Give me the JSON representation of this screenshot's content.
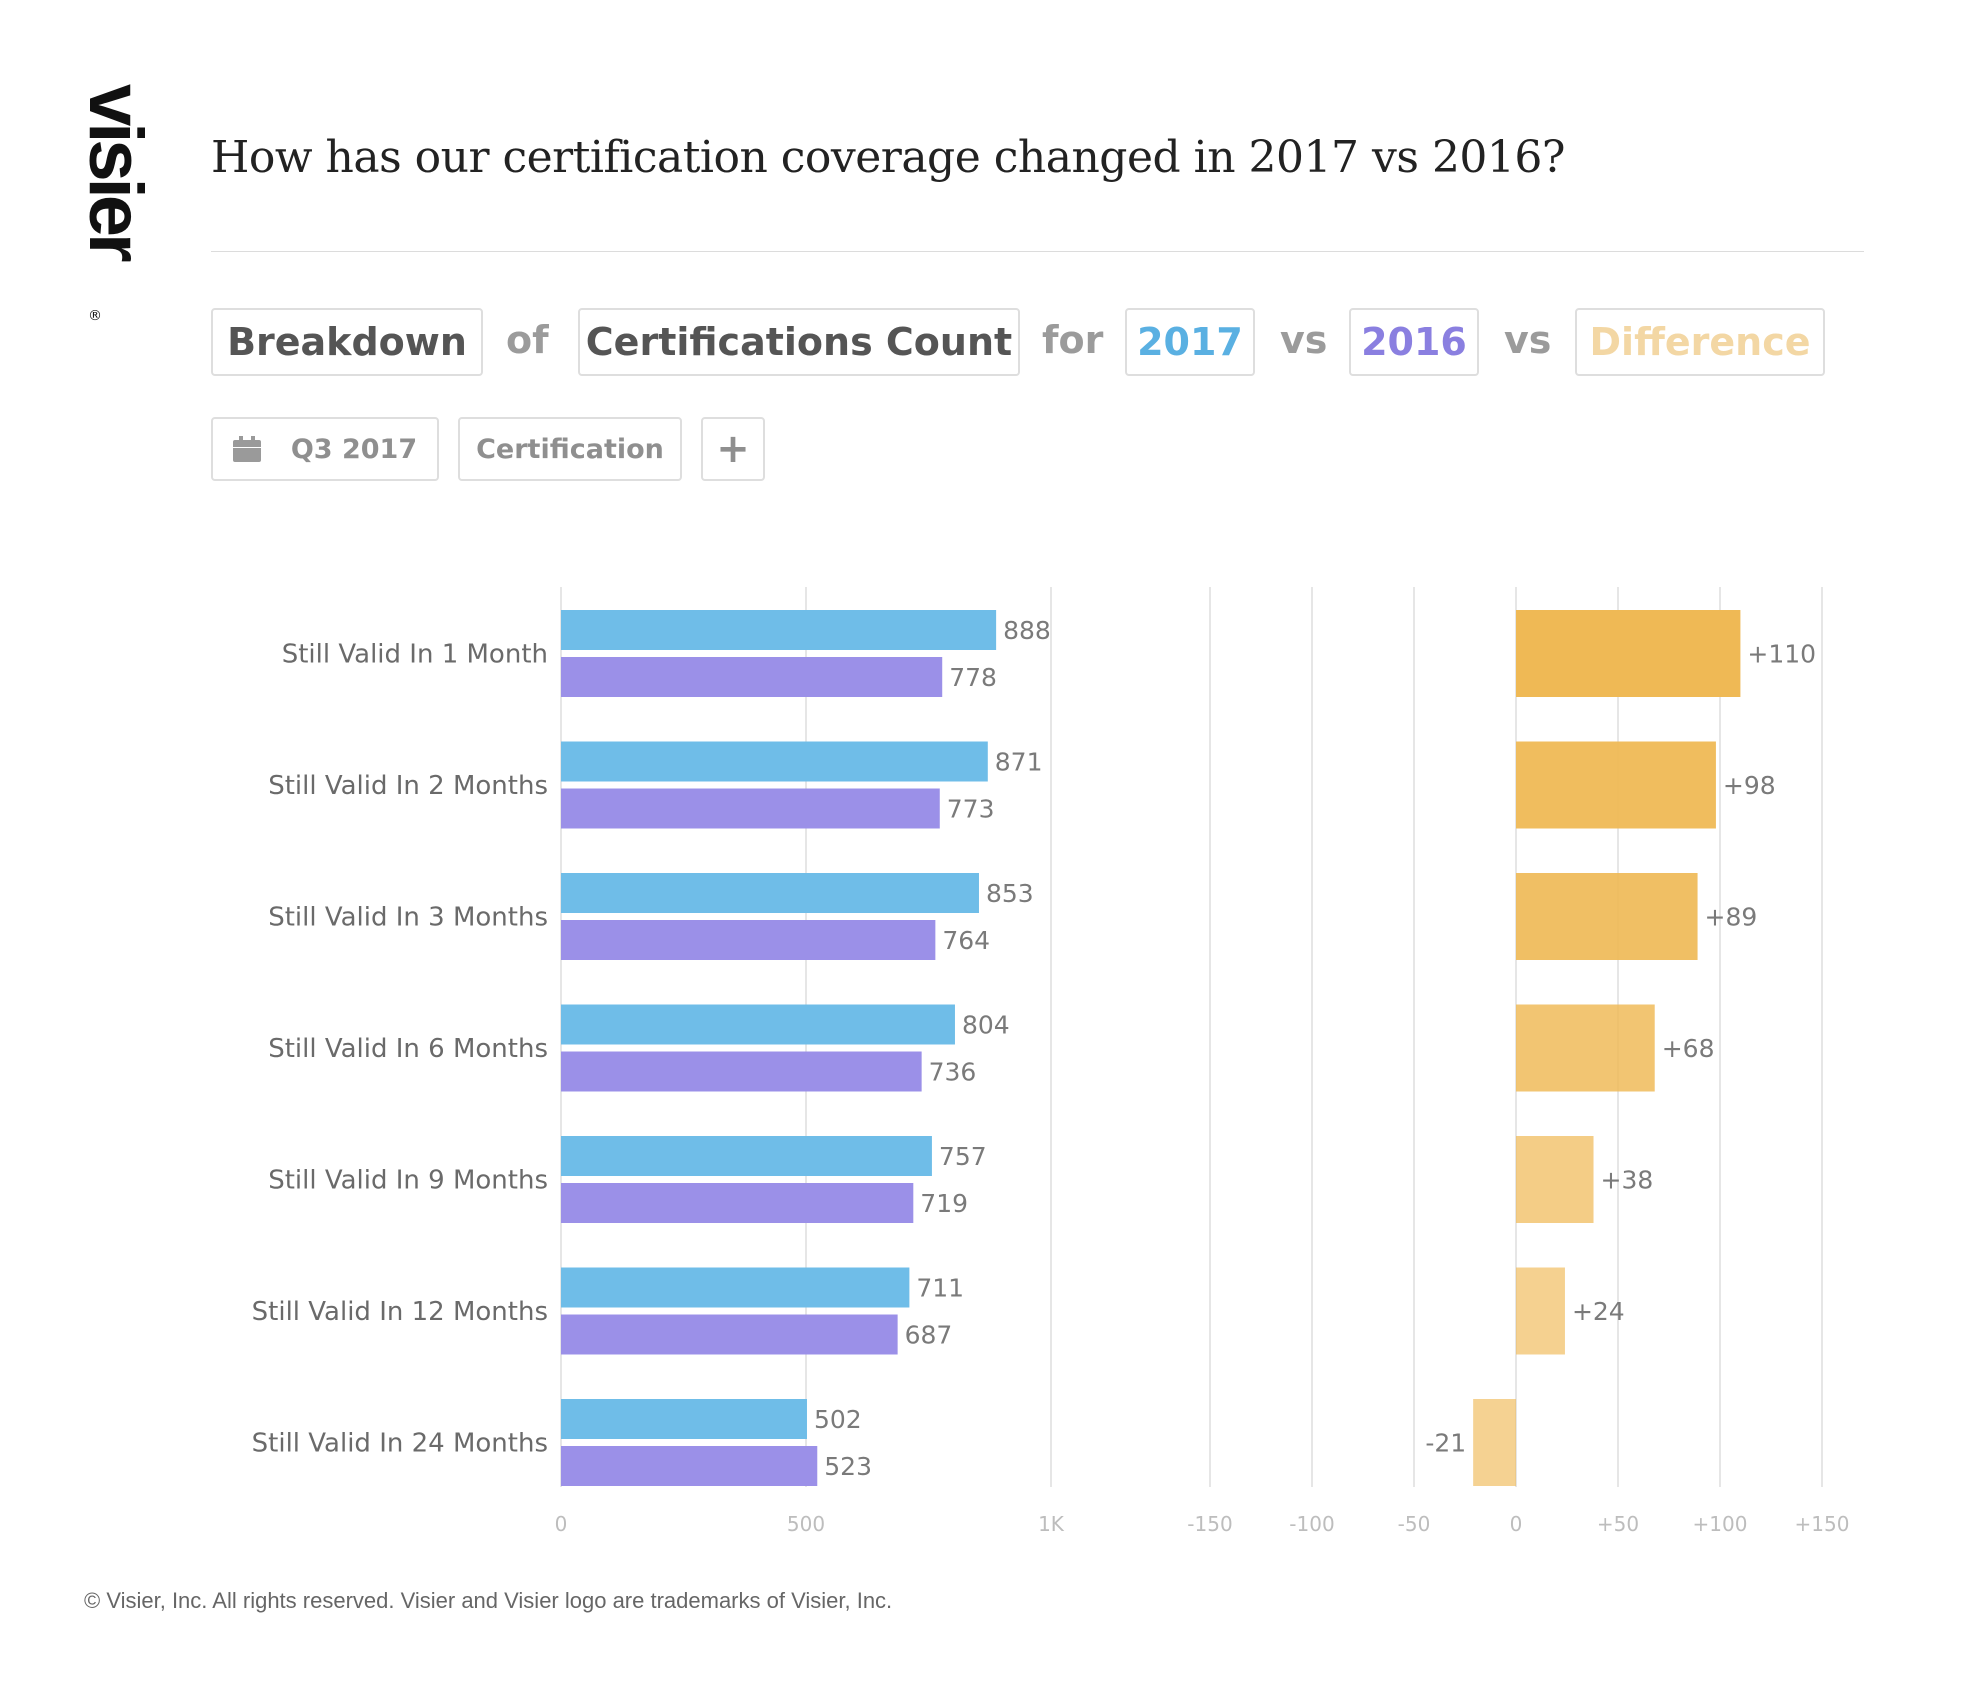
{
  "brand": {
    "logo_text": "visier",
    "registered_mark": "®"
  },
  "title": "How has our certification coverage changed in 2017 vs 2016?",
  "query_bar": {
    "breakdown": "Breakdown",
    "of": "of",
    "metric": "Certifications Count",
    "for": "for",
    "period_current": "2017",
    "vs1": "vs",
    "period_compare": "2016",
    "vs2": "vs",
    "difference": "Difference"
  },
  "filters": {
    "time_period": "Q3 2017",
    "dimension": "Certification",
    "add_icon": "plus-icon",
    "calendar_icon": "calendar-icon"
  },
  "colors": {
    "current": "#6fbde8",
    "compare": "#9b90e8",
    "difference": "#efb955",
    "difference_label": "#f3d7a4",
    "current_label": "#5ab0e2",
    "compare_label": "#8a7fe0"
  },
  "chart_data": [
    {
      "type": "bar",
      "orientation": "horizontal",
      "categories": [
        "Still Valid In 1 Month",
        "Still Valid In 2 Months",
        "Still Valid In 3 Months",
        "Still Valid In 6 Months",
        "Still Valid In 9 Months",
        "Still Valid In 12 Months",
        "Still Valid In 24 Months"
      ],
      "series": [
        {
          "name": "2017",
          "values": [
            888,
            871,
            853,
            804,
            757,
            711,
            502
          ]
        },
        {
          "name": "2016",
          "values": [
            778,
            773,
            764,
            736,
            719,
            687,
            523
          ]
        }
      ],
      "xlim": [
        0,
        1000
      ],
      "xticks": [
        0,
        500,
        1000
      ],
      "xtick_labels": [
        "0",
        "500",
        "1K"
      ],
      "grid": true
    },
    {
      "type": "bar",
      "orientation": "horizontal",
      "categories": [
        "Still Valid In 1 Month",
        "Still Valid In 2 Months",
        "Still Valid In 3 Months",
        "Still Valid In 6 Months",
        "Still Valid In 9 Months",
        "Still Valid In 12 Months",
        "Still Valid In 24 Months"
      ],
      "series": [
        {
          "name": "Difference",
          "values": [
            110,
            98,
            89,
            68,
            38,
            24,
            -21
          ],
          "labels": [
            "+110",
            "+98",
            "+89",
            "+68",
            "+38",
            "+24",
            "-21"
          ]
        }
      ],
      "xlim": [
        -150,
        150
      ],
      "xticks": [
        -150,
        -100,
        -50,
        0,
        50,
        100,
        150
      ],
      "xtick_labels": [
        "-150",
        "-100",
        "-50",
        "0",
        "+50",
        "+100",
        "+150"
      ],
      "grid": true
    }
  ],
  "footer": "© Visier, Inc. All rights reserved. Visier and Visier logo are trademarks of Visier, Inc."
}
